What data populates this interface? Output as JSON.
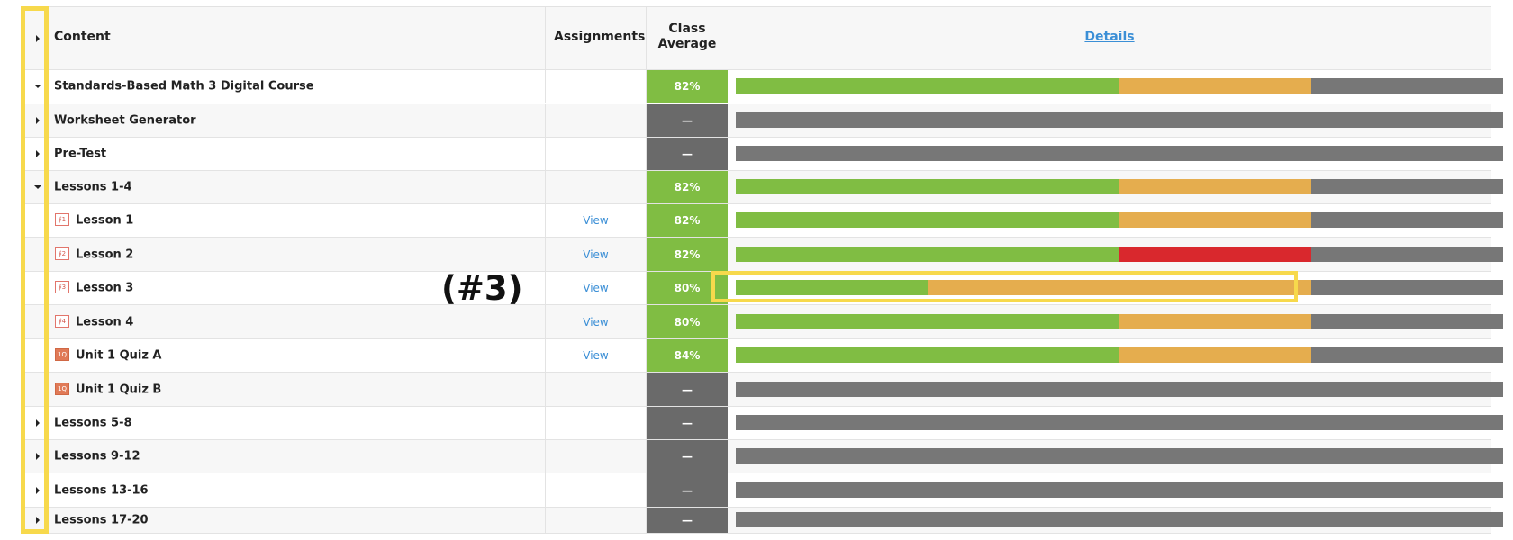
{
  "header": {
    "content_label": "Content",
    "assignments_label": "Assignments",
    "class_average_line1": "Class",
    "class_average_line2": "Average",
    "details_link": "Details"
  },
  "colors": {
    "green": "#80bd43",
    "orange": "#e5ad4e",
    "red": "#d9282d",
    "gray": "#777777",
    "avg_gray": "#6a6a6a"
  },
  "rows": [
    {
      "label": "Standards-Based Math 3 Digital Course",
      "toggle": "expanded",
      "icon": "none",
      "assignments": "",
      "average": "82%",
      "average_status": "scored",
      "progress": {
        "green": 0.5,
        "orange": 0.25,
        "red": 0,
        "gray": 0.25
      }
    },
    {
      "label": "Worksheet Generator",
      "toggle": "collapsed",
      "icon": "none",
      "assignments": "",
      "average": "—",
      "average_status": "none",
      "progress": {
        "green": 0,
        "orange": 0,
        "red": 0,
        "gray": 1
      }
    },
    {
      "label": "Pre-Test",
      "toggle": "collapsed",
      "icon": "none",
      "assignments": "",
      "average": "—",
      "average_status": "none",
      "progress": {
        "green": 0,
        "orange": 0,
        "red": 0,
        "gray": 1
      }
    },
    {
      "label": "Lessons 1-4",
      "toggle": "expanded",
      "icon": "none",
      "assignments": "",
      "average": "82%",
      "average_status": "scored",
      "progress": {
        "green": 0.5,
        "orange": 0.25,
        "red": 0,
        "gray": 0.25
      }
    },
    {
      "label": "Lesson 1",
      "toggle": "none",
      "icon": "lesson",
      "icon_text": "∮1",
      "assignments": "View",
      "average": "82%",
      "average_status": "scored",
      "progress": {
        "green": 0.5,
        "orange": 0.25,
        "red": 0,
        "gray": 0.25
      }
    },
    {
      "label": "Lesson 2",
      "toggle": "none",
      "icon": "lesson",
      "icon_text": "∮2",
      "assignments": "View",
      "average": "82%",
      "average_status": "scored",
      "progress": {
        "green": 0.5,
        "orange": 0,
        "red": 0.25,
        "gray": 0.25
      }
    },
    {
      "label": "Lesson 3",
      "toggle": "none",
      "icon": "lesson",
      "icon_text": "∮3",
      "assignments": "View",
      "average": "80%",
      "average_status": "scored",
      "progress": {
        "green": 0.25,
        "orange": 0.5,
        "red": 0,
        "gray": 0.25
      }
    },
    {
      "label": "Lesson 4",
      "toggle": "none",
      "icon": "lesson",
      "icon_text": "∮4",
      "assignments": "View",
      "average": "80%",
      "average_status": "scored",
      "progress": {
        "green": 0.5,
        "orange": 0.25,
        "red": 0,
        "gray": 0.25
      }
    },
    {
      "label": "Unit 1 Quiz A",
      "toggle": "none",
      "icon": "quiz",
      "icon_text": "1Q",
      "assignments": "View",
      "average": "84%",
      "average_status": "scored",
      "progress": {
        "green": 0.5,
        "orange": 0.25,
        "red": 0,
        "gray": 0.25
      }
    },
    {
      "label": "Unit 1 Quiz B",
      "toggle": "none",
      "icon": "quiz",
      "icon_text": "1Q",
      "assignments": "",
      "average": "—",
      "average_status": "none",
      "progress": {
        "green": 0,
        "orange": 0,
        "red": 0,
        "gray": 1
      }
    },
    {
      "label": "Lessons 5-8",
      "toggle": "collapsed",
      "icon": "none",
      "assignments": "",
      "average": "—",
      "average_status": "none",
      "progress": {
        "green": 0,
        "orange": 0,
        "red": 0,
        "gray": 1
      }
    },
    {
      "label": "Lessons 9-12",
      "toggle": "collapsed",
      "icon": "none",
      "assignments": "",
      "average": "—",
      "average_status": "none",
      "progress": {
        "green": 0,
        "orange": 0,
        "red": 0,
        "gray": 1
      }
    },
    {
      "label": "Lessons 13-16",
      "toggle": "collapsed",
      "icon": "none",
      "assignments": "",
      "average": "—",
      "average_status": "none",
      "progress": {
        "green": 0,
        "orange": 0,
        "red": 0,
        "gray": 1
      }
    },
    {
      "label": "Lessons 17-20",
      "toggle": "collapsed",
      "icon": "none",
      "assignments": "",
      "average": "—",
      "average_status": "none",
      "progress": {
        "green": 0,
        "orange": 0,
        "red": 0,
        "gray": 1
      }
    }
  ],
  "annotation": {
    "text": "(#3)",
    "highlight_color": "#f7d94c"
  }
}
